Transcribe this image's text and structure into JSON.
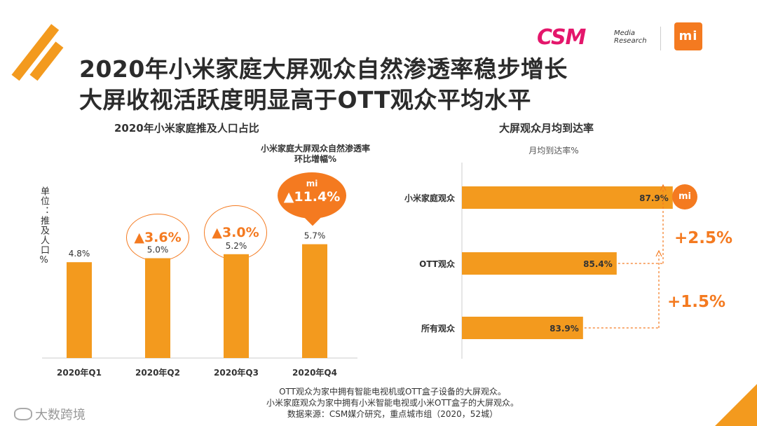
{
  "titles": {
    "line1": "2020年小米家庭大屏观众自然渗透率稳步增长",
    "line2": "大屏收视活跃度明显高于OTT观众平均水平"
  },
  "logos": {
    "csm_main": "CSM",
    "csm_sub_1": "Media",
    "csm_sub_2": "Research",
    "mi_text": "mi"
  },
  "colors": {
    "accent": "#f39a1e",
    "bubble": "#f47a20",
    "brand_pink": "#e4166b"
  },
  "left_chart": {
    "section_title": "2020年小米家庭推及人口占比",
    "note_line1": "小米家庭大屏观众自然渗透率",
    "note_line2": "环比增幅%",
    "ylabel": "单位：推及人口%",
    "bubbles": [
      "▲3.6%",
      "▲3.0%",
      "▲11.4%"
    ],
    "bubble_mi_text": "mi"
  },
  "right_chart": {
    "section_title": "大屏观众月均到达率",
    "subtitle": "月均到达率%",
    "diff_top": "+2.5%",
    "diff_bottom": "+1.5%",
    "mi_badge": "mi"
  },
  "chart_data": [
    {
      "type": "bar",
      "title": "2020年小米家庭推及人口占比",
      "ylabel": "单位：推及人口%",
      "categories": [
        "2020年Q1",
        "2020年Q2",
        "2020年Q3",
        "2020年Q4"
      ],
      "values": [
        4.8,
        5.0,
        5.2,
        5.7
      ],
      "value_labels": [
        "4.8%",
        "5.0%",
        "5.2%",
        "5.7%"
      ],
      "annotations": [
        "▲3.6%",
        "▲3.0%",
        "▲11.4%"
      ]
    },
    {
      "type": "bar",
      "orientation": "horizontal",
      "title": "大屏观众月均到达率",
      "xlabel": "月均到达率%",
      "categories": [
        "小米家庭观众",
        "OTT观众",
        "所有观众"
      ],
      "values": [
        87.9,
        85.4,
        83.9
      ],
      "value_labels": [
        "87.9%",
        "85.4%",
        "83.9%"
      ]
    }
  ],
  "footer": {
    "line1": "OTT观众为家中拥有智能电视机或OTT盒子设备的大屏观众。",
    "line2": "小米家庭观众为家中拥有小米智能电视或小米OTT盒子的大屏观众。",
    "line3": "数据来源：CSM媒介研究，重点城市组（2020，52城）",
    "brand": "大数跨境"
  }
}
